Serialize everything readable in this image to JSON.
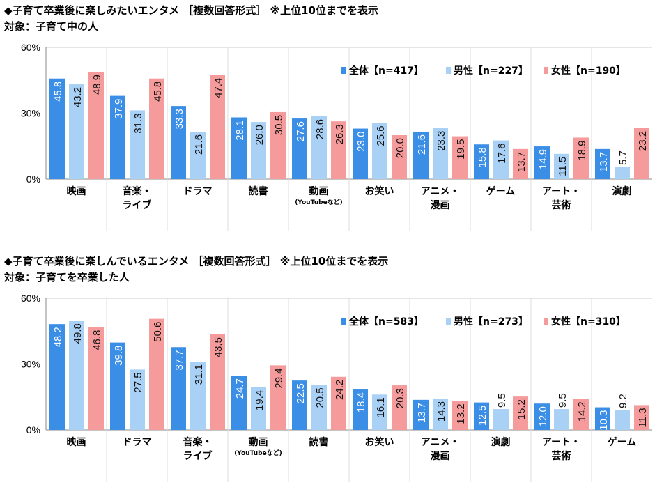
{
  "colors": {
    "all": "#3a8ee6",
    "male": "#a9d0f5",
    "female": "#f59b9b"
  },
  "chart_data": [
    {
      "type": "bar",
      "title": "◆子育て卒業後に楽しみたいエンタメ ［複数回答形式］ ※上位10位までを表示",
      "subtitle": "対象：子育て中の人",
      "ylim": [
        0,
        60
      ],
      "yticks": [
        "0%",
        "30%",
        "60%"
      ],
      "grid": "vertical separators",
      "legend": "top-right",
      "categories": [
        [
          "映画"
        ],
        [
          "音楽・",
          "ライブ"
        ],
        [
          "ドラマ"
        ],
        [
          "読書"
        ],
        [
          "動画",
          "(YouTubeなど)"
        ],
        [
          "お笑い"
        ],
        [
          "アニメ・",
          "漫画"
        ],
        [
          "ゲーム"
        ],
        [
          "アート・",
          "芸術"
        ],
        [
          "演劇"
        ]
      ],
      "series": [
        {
          "name": "全体【n=417】",
          "values": [
            45.8,
            37.9,
            33.3,
            28.1,
            27.6,
            23.0,
            21.6,
            15.8,
            14.9,
            13.7
          ]
        },
        {
          "name": "男性【n=227】",
          "values": [
            43.2,
            31.3,
            21.6,
            26.0,
            28.6,
            25.6,
            23.3,
            17.6,
            11.5,
            5.7
          ]
        },
        {
          "name": "女性【n=190】",
          "values": [
            48.9,
            45.8,
            47.4,
            30.5,
            26.3,
            20.0,
            19.5,
            13.7,
            18.9,
            23.2
          ]
        }
      ]
    },
    {
      "type": "bar",
      "title": "◆子育て卒業後に楽しんでいるエンタメ ［複数回答形式］ ※上位10位までを表示",
      "subtitle": "対象：子育てを卒業した人",
      "ylim": [
        0,
        60
      ],
      "yticks": [
        "0%",
        "30%",
        "60%"
      ],
      "grid": "vertical separators",
      "legend": "top-right",
      "categories": [
        [
          "映画"
        ],
        [
          "ドラマ"
        ],
        [
          "音楽・",
          "ライブ"
        ],
        [
          "動画",
          "(YouTubeなど)"
        ],
        [
          "読書"
        ],
        [
          "お笑い"
        ],
        [
          "アニメ・",
          "漫画"
        ],
        [
          "演劇"
        ],
        [
          "アート・",
          "芸術"
        ],
        [
          "ゲーム"
        ]
      ],
      "series": [
        {
          "name": "全体【n=583】",
          "values": [
            48.2,
            39.8,
            37.7,
            24.7,
            22.5,
            18.4,
            13.7,
            12.5,
            12.0,
            10.3
          ]
        },
        {
          "name": "男性【n=273】",
          "values": [
            49.8,
            27.5,
            31.1,
            19.4,
            20.5,
            16.1,
            14.3,
            9.5,
            9.5,
            9.2
          ]
        },
        {
          "name": "女性【n=310】",
          "values": [
            46.8,
            50.6,
            43.5,
            29.4,
            24.2,
            20.3,
            13.2,
            15.2,
            14.2,
            11.3
          ]
        }
      ]
    }
  ]
}
